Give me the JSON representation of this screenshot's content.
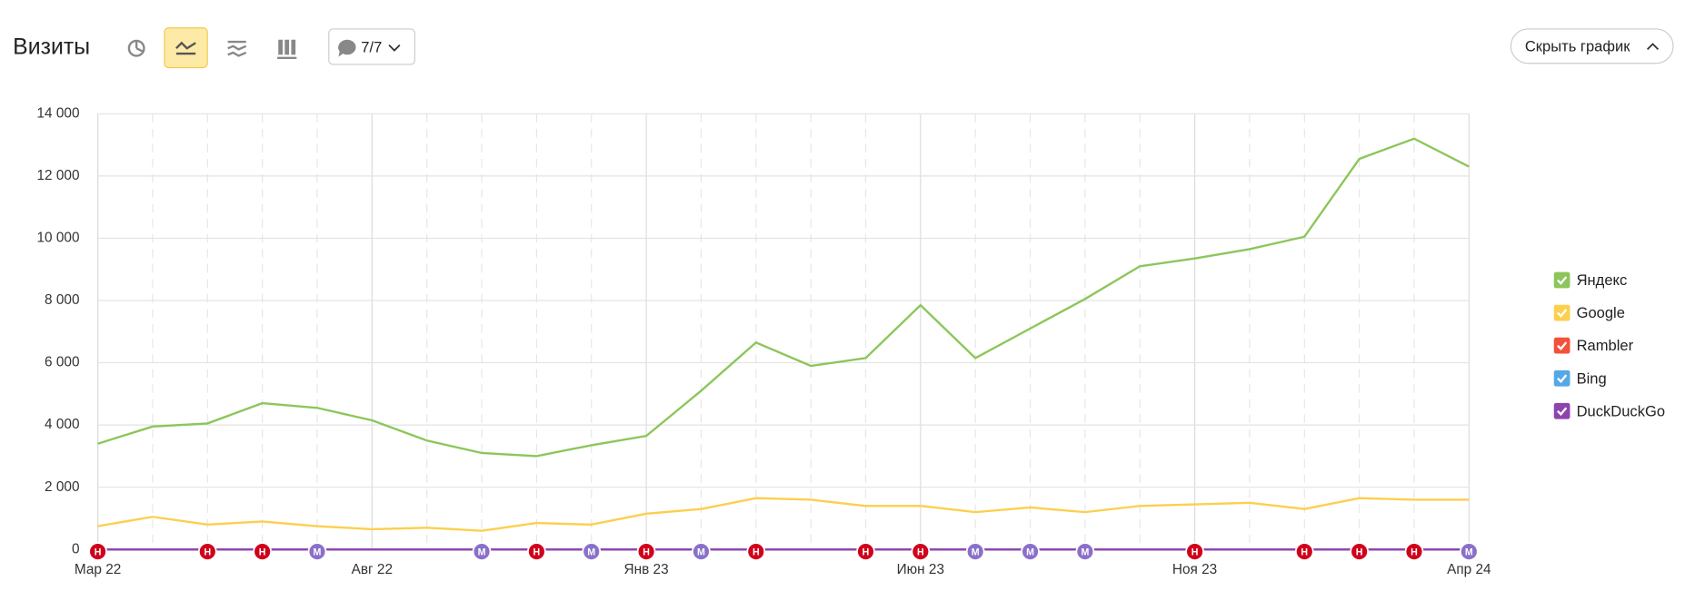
{
  "header": {
    "title": "Визиты",
    "filter": "7/7",
    "hide_button": "Скрыть график"
  },
  "chart_data": {
    "type": "line",
    "categories": [
      "Мар 22",
      null,
      null,
      null,
      null,
      "Авг 22",
      null,
      null,
      null,
      null,
      "Янв 23",
      null,
      null,
      null,
      null,
      "Июн 23",
      null,
      null,
      null,
      null,
      "Ноя 23",
      null,
      null,
      null,
      null,
      "Апр 24"
    ],
    "series": [
      {
        "name": "Яндекс",
        "color": "#8cc65a",
        "values": [
          3400,
          3950,
          4050,
          4700,
          4550,
          4150,
          3500,
          3100,
          3000,
          3350,
          3650,
          5100,
          6650,
          5900,
          6150,
          7850,
          6150,
          7100,
          8050,
          9100,
          9350,
          9650,
          10050,
          12550,
          13200,
          12300
        ]
      },
      {
        "name": "Google",
        "color": "#fccf4d",
        "values": [
          750,
          1050,
          800,
          900,
          750,
          650,
          700,
          600,
          850,
          800,
          1150,
          1300,
          1650,
          1600,
          1400,
          1400,
          1200,
          1350,
          1200,
          1400,
          1450,
          1500,
          1300,
          1650,
          1600,
          1600
        ]
      },
      {
        "name": "Rambler",
        "color": "#f4513a",
        "values": [
          0,
          0,
          0,
          0,
          0,
          0,
          0,
          0,
          0,
          0,
          0,
          0,
          0,
          0,
          0,
          0,
          0,
          0,
          0,
          0,
          0,
          0,
          0,
          0,
          0,
          0
        ]
      },
      {
        "name": "Bing",
        "color": "#54a8e6",
        "values": [
          0,
          0,
          0,
          0,
          0,
          0,
          0,
          0,
          0,
          0,
          0,
          0,
          0,
          0,
          0,
          0,
          0,
          0,
          0,
          0,
          0,
          0,
          0,
          0,
          0,
          0
        ]
      },
      {
        "name": "DuckDuckGo",
        "color": "#8e44ad",
        "values": [
          0,
          0,
          0,
          0,
          0,
          0,
          0,
          0,
          0,
          0,
          0,
          0,
          0,
          0,
          0,
          0,
          0,
          0,
          0,
          0,
          0,
          0,
          0,
          0,
          0,
          0
        ]
      }
    ],
    "ylim": [
      0,
      14000
    ],
    "yticks": [
      0,
      {
        "value": 2000,
        "label": "2 000"
      },
      {
        "value": 4000,
        "label": "4 000"
      },
      {
        "value": 6000,
        "label": "6 000"
      },
      {
        "value": 8000,
        "label": "8 000"
      },
      {
        "value": 10000,
        "label": "10 000"
      },
      {
        "value": 12000,
        "label": "12 000"
      },
      {
        "value": 14000,
        "label": "14 000"
      }
    ],
    "grid": true,
    "legend": "right",
    "annotations": [
      {
        "x": 0,
        "label": "Н",
        "color": "#d0021b"
      },
      {
        "x": 2,
        "label": "Н",
        "color": "#d0021b"
      },
      {
        "x": 3,
        "label": "Н",
        "color": "#d0021b"
      },
      {
        "x": 4,
        "label": "М",
        "color": "#8a70c9"
      },
      {
        "x": 7,
        "label": "М",
        "color": "#8a70c9"
      },
      {
        "x": 8,
        "label": "Н",
        "color": "#d0021b"
      },
      {
        "x": 9,
        "label": "М",
        "color": "#8a70c9"
      },
      {
        "x": 10,
        "label": "Н",
        "color": "#d0021b"
      },
      {
        "x": 11,
        "label": "М",
        "color": "#8a70c9"
      },
      {
        "x": 12,
        "label": "Н",
        "color": "#d0021b"
      },
      {
        "x": 14,
        "label": "Н",
        "color": "#d0021b"
      },
      {
        "x": 15,
        "label": "Н",
        "color": "#d0021b"
      },
      {
        "x": 16,
        "label": "М",
        "color": "#8a70c9"
      },
      {
        "x": 17,
        "label": "М",
        "color": "#8a70c9"
      },
      {
        "x": 18,
        "label": "М",
        "color": "#8a70c9"
      },
      {
        "x": 20,
        "label": "Н",
        "color": "#d0021b"
      },
      {
        "x": 22,
        "label": "Н",
        "color": "#d0021b"
      },
      {
        "x": 23,
        "label": "Н",
        "color": "#d0021b"
      },
      {
        "x": 24,
        "label": "Н",
        "color": "#d0021b"
      },
      {
        "x": 25,
        "label": "М",
        "color": "#8a70c9"
      }
    ]
  }
}
